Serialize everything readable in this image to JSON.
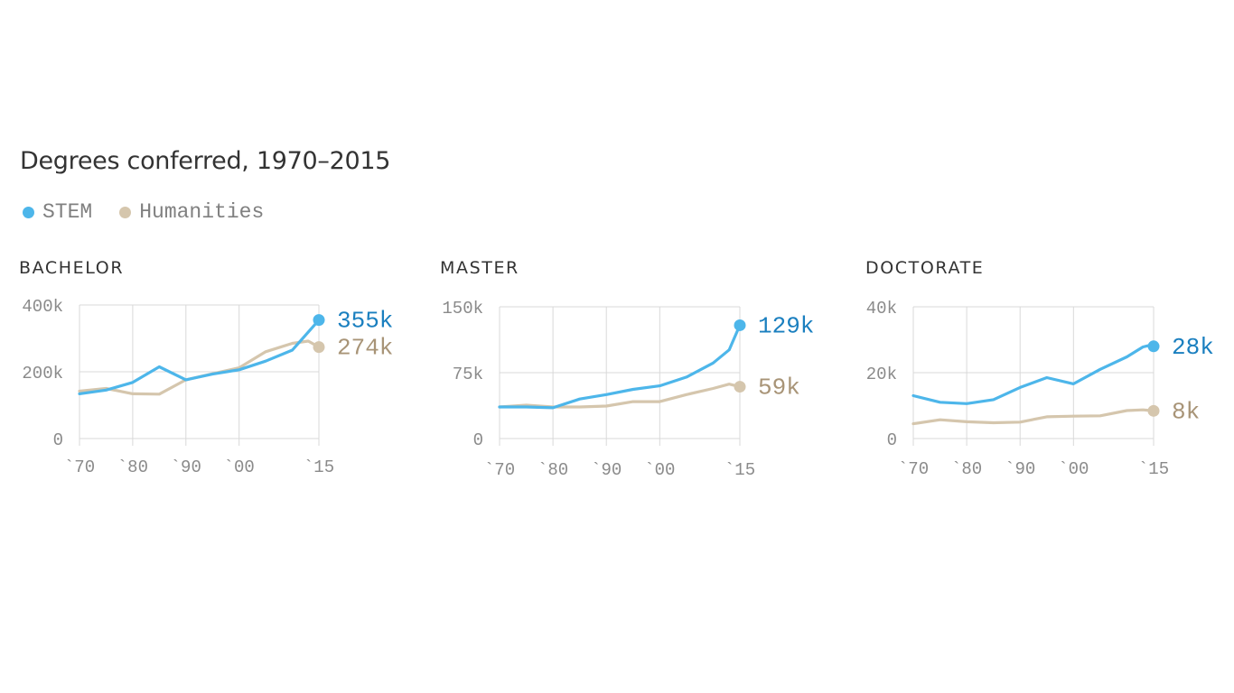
{
  "title": "Degrees conferred, 1970–2015",
  "legend": [
    {
      "label": "STEM",
      "color": "#4db6ea"
    },
    {
      "label": "Humanities",
      "color": "#d5c6ad"
    }
  ],
  "colors": {
    "stem_line": "#4db6ea",
    "stem_label": "#1a7fbf",
    "hum_line": "#d5c6ad",
    "hum_label": "#a89477",
    "grid": "#d9d9d9",
    "tick": "#8a8a8a"
  },
  "chart_data": [
    {
      "type": "line",
      "title": "BACHELOR",
      "x_ticks": [
        1970,
        1980,
        1990,
        2000,
        2015
      ],
      "x_tick_labels": [
        "`70",
        "`80",
        "`90",
        "`00",
        "`15"
      ],
      "xlim": [
        1970,
        2015
      ],
      "ylim": [
        0,
        400000
      ],
      "y_ticks": [
        0,
        200000,
        400000
      ],
      "y_tick_labels": [
        "0",
        "200k",
        "400k"
      ],
      "end_labels": {
        "stem": "355k",
        "humanities": "274k"
      },
      "series": [
        {
          "name": "STEM",
          "x": [
            1970,
            1975,
            1980,
            1985,
            1990,
            1995,
            2000,
            2005,
            2010,
            2015
          ],
          "y": [
            134000,
            145000,
            168000,
            215000,
            176000,
            193000,
            206000,
            232000,
            265000,
            355000
          ]
        },
        {
          "name": "Humanities",
          "x": [
            1970,
            1975,
            1980,
            1985,
            1990,
            1995,
            2000,
            2005,
            2010,
            2013,
            2015
          ],
          "y": [
            142000,
            150000,
            134000,
            133000,
            176000,
            194000,
            212000,
            260000,
            285000,
            292000,
            274000
          ]
        }
      ]
    },
    {
      "type": "line",
      "title": "MASTER",
      "x_ticks": [
        1970,
        1980,
        1990,
        2000,
        2015
      ],
      "x_tick_labels": [
        "`70",
        "`80",
        "`90",
        "`00",
        "`15"
      ],
      "xlim": [
        1970,
        2015
      ],
      "ylim": [
        0,
        150000
      ],
      "y_ticks": [
        0,
        75000,
        150000
      ],
      "y_tick_labels": [
        "0",
        "75k",
        "150k"
      ],
      "end_labels": {
        "stem": "129k",
        "humanities": "59k"
      },
      "series": [
        {
          "name": "STEM",
          "x": [
            1970,
            1975,
            1980,
            1985,
            1990,
            1995,
            2000,
            2005,
            2010,
            2013,
            2015
          ],
          "y": [
            36000,
            36000,
            35000,
            45000,
            50000,
            56000,
            60000,
            70000,
            86000,
            101000,
            129000
          ]
        },
        {
          "name": "Humanities",
          "x": [
            1970,
            1975,
            1980,
            1985,
            1990,
            1995,
            2000,
            2005,
            2010,
            2013,
            2015
          ],
          "y": [
            36000,
            38000,
            36000,
            36000,
            37000,
            42000,
            42000,
            50000,
            57000,
            62000,
            59000
          ]
        }
      ]
    },
    {
      "type": "line",
      "title": "DOCTORATE",
      "x_ticks": [
        1970,
        1980,
        1990,
        2000,
        2015
      ],
      "x_tick_labels": [
        "`70",
        "`80",
        "`90",
        "`00",
        "`15"
      ],
      "xlim": [
        1970,
        2015
      ],
      "ylim": [
        0,
        40000
      ],
      "y_ticks": [
        0,
        20000,
        40000
      ],
      "y_tick_labels": [
        "0",
        "20k",
        "40k"
      ],
      "end_labels": {
        "stem": "28k",
        "humanities": "8k"
      },
      "series": [
        {
          "name": "STEM",
          "x": [
            1970,
            1975,
            1980,
            1985,
            1990,
            1995,
            2000,
            2005,
            2010,
            2013,
            2014,
            2015
          ],
          "y": [
            13000,
            11000,
            10600,
            11800,
            15500,
            18500,
            16600,
            21000,
            24800,
            27800,
            28200,
            28000
          ]
        },
        {
          "name": "Humanities",
          "x": [
            1970,
            1975,
            1980,
            1985,
            1990,
            1995,
            2000,
            2005,
            2010,
            2013,
            2015
          ],
          "y": [
            4500,
            5700,
            5100,
            4800,
            5000,
            6600,
            6800,
            6900,
            8500,
            8700,
            8400
          ]
        }
      ]
    }
  ]
}
